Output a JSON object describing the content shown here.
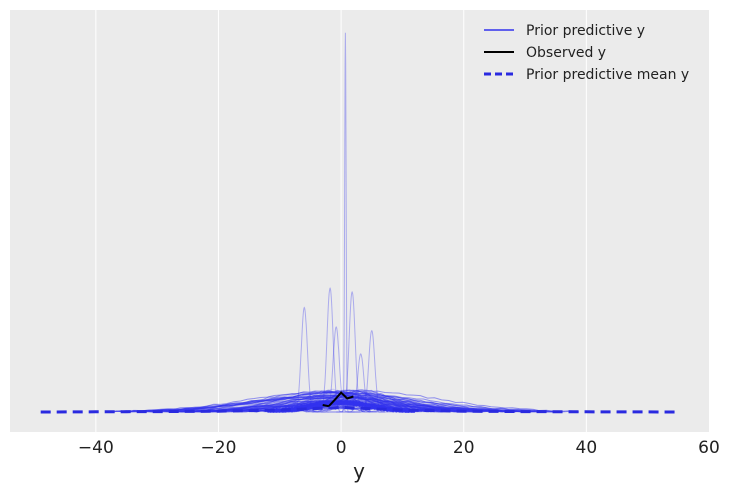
{
  "chart_data": {
    "type": "line",
    "title": "",
    "xlabel": "y",
    "ylabel": "",
    "xlim": [
      -54,
      60
    ],
    "ylim": [
      0,
      1.0
    ],
    "grid": true,
    "xticks": [
      -40,
      -20,
      0,
      20,
      40,
      60
    ],
    "xtick_labels": [
      "−40",
      "−20",
      "0",
      "20",
      "40",
      "60"
    ],
    "legend": {
      "placement": "top-right",
      "entries": [
        {
          "label": "Prior predictive y",
          "color": "#3333ee",
          "style": "solid"
        },
        {
          "label": "Observed y",
          "color": "#000000",
          "style": "solid"
        },
        {
          "label": "Prior predictive mean y",
          "color": "#2a2ae0",
          "style": "dashed"
        }
      ]
    },
    "colors": {
      "background": "#ebebeb",
      "grid": "#ffffff",
      "prior_predictive": "#3333ee",
      "observed": "#000000",
      "mean": "#2a2ae0"
    },
    "series": [
      {
        "name": "Observed y",
        "x": [
          -3.0,
          -2.0,
          -1.0,
          0.0,
          1.0,
          2.0
        ],
        "y": [
          0.018,
          0.015,
          0.032,
          0.05,
          0.035,
          0.04
        ]
      },
      {
        "name": "Prior predictive mean y",
        "x": [
          -49,
          -40,
          -30,
          -20,
          -10,
          0,
          10,
          20,
          30,
          40,
          55
        ],
        "y": [
          0.0,
          0.0005,
          0.001,
          0.002,
          0.005,
          0.012,
          0.005,
          0.002,
          0.001,
          0.0005,
          0.0
        ]
      }
    ],
    "prior_predictive_peaks": [
      {
        "x": 0.7,
        "y": 0.98
      },
      {
        "x": -6.0,
        "y": 0.27
      },
      {
        "x": -1.8,
        "y": 0.32
      },
      {
        "x": 1.8,
        "y": 0.31
      },
      {
        "x": 5.0,
        "y": 0.21
      },
      {
        "x": -0.8,
        "y": 0.22
      },
      {
        "x": 3.2,
        "y": 0.15
      }
    ]
  }
}
